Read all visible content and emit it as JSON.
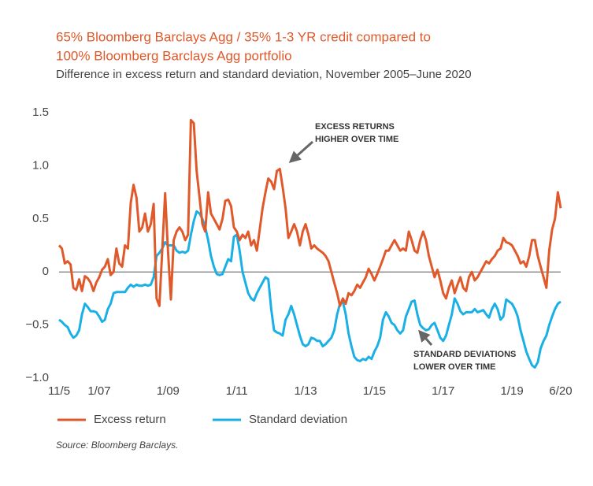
{
  "chart_data": {
    "type": "line",
    "title": [
      "65% Bloomberg Barclays Agg  / 35% 1-3 YR credit compared to",
      "100% Bloomberg Barclays Agg portfolio"
    ],
    "subtitle": "Difference in excess return and standard deviation, November 2005–June 2020",
    "source": "Source: Bloomberg Barclays.",
    "annotations": [
      {
        "text": [
          "EXCESS RETURNS",
          "HIGHER OVER TIME"
        ]
      },
      {
        "text": [
          "STANDARD DEVIATIONS",
          "LOWER OVER TIME"
        ]
      }
    ],
    "categories": [
      "11/5",
      null,
      null,
      null,
      null,
      null,
      null,
      null,
      null,
      null,
      null,
      null,
      null,
      null,
      "1/07",
      null,
      null,
      null,
      null,
      null,
      null,
      null,
      null,
      null,
      null,
      null,
      null,
      null,
      null,
      null,
      null,
      null,
      null,
      null,
      null,
      null,
      null,
      null,
      "1/09",
      null,
      null,
      null,
      null,
      null,
      null,
      null,
      null,
      null,
      null,
      null,
      null,
      null,
      null,
      null,
      null,
      null,
      null,
      null,
      null,
      null,
      null,
      null,
      "1/11",
      null,
      null,
      null,
      null,
      null,
      null,
      null,
      null,
      null,
      null,
      null,
      null,
      null,
      null,
      null,
      null,
      null,
      null,
      null,
      null,
      null,
      null,
      null,
      "1/13",
      null,
      null,
      null,
      null,
      null,
      null,
      null,
      null,
      null,
      null,
      null,
      null,
      null,
      null,
      null,
      null,
      null,
      null,
      null,
      null,
      null,
      null,
      null,
      "1/15",
      null,
      null,
      null,
      null,
      null,
      null,
      null,
      null,
      null,
      null,
      null,
      null,
      null,
      null,
      null,
      null,
      null,
      null,
      null,
      null,
      null,
      null,
      null,
      "1/17",
      null,
      null,
      null,
      null,
      null,
      null,
      null,
      null,
      null,
      null,
      null,
      null,
      null,
      null,
      null,
      null,
      null,
      null,
      null,
      null,
      null,
      null,
      null,
      "1/19",
      null,
      null,
      null,
      null,
      null,
      null,
      null,
      null,
      null,
      null,
      null,
      null,
      null,
      null,
      null,
      null,
      "6/20"
    ],
    "series": [
      {
        "name": "Excess return",
        "color": "#e0592a",
        "values": [
          0.25,
          0.22,
          0.08,
          0.1,
          0.07,
          -0.15,
          -0.17,
          -0.07,
          -0.18,
          -0.04,
          -0.06,
          -0.1,
          -0.18,
          -0.1,
          -0.05,
          0.02,
          0.05,
          0.12,
          -0.03,
          0.0,
          0.22,
          0.08,
          0.05,
          0.25,
          0.22,
          0.65,
          0.82,
          0.7,
          0.38,
          0.42,
          0.55,
          0.38,
          0.45,
          0.64,
          -0.25,
          -0.32,
          0.2,
          0.74,
          0.2,
          -0.26,
          0.3,
          0.38,
          0.42,
          0.38,
          0.3,
          0.35,
          1.43,
          1.4,
          0.95,
          0.7,
          0.45,
          0.38,
          0.75,
          0.55,
          0.5,
          0.45,
          0.4,
          0.5,
          0.67,
          0.68,
          0.62,
          0.42,
          0.38,
          0.3,
          0.35,
          0.32,
          0.38,
          0.25,
          0.3,
          0.2,
          0.4,
          0.6,
          0.75,
          0.88,
          0.85,
          0.78,
          0.95,
          0.97,
          0.8,
          0.6,
          0.32,
          0.38,
          0.45,
          0.38,
          0.25,
          0.38,
          0.45,
          0.35,
          0.22,
          0.25,
          0.22,
          0.2,
          0.18,
          0.15,
          0.1,
          0,
          -0.1,
          -0.2,
          -0.32,
          -0.25,
          -0.3,
          -0.2,
          -0.22,
          -0.18,
          -0.12,
          -0.15,
          -0.1,
          -0.05,
          0.03,
          -0.02,
          -0.08,
          -0.02,
          0.05,
          0.12,
          0.2,
          0.2,
          0.25,
          0.3,
          0.25,
          0.2,
          0.22,
          0.2,
          0.38,
          0.3,
          0.2,
          0.18,
          0.3,
          0.38,
          0.3,
          0.15,
          0.05,
          -0.05,
          0.02,
          -0.08,
          -0.2,
          -0.25,
          -0.15,
          -0.08,
          -0.2,
          -0.12,
          -0.05,
          -0.15,
          -0.18,
          -0.05,
          0,
          -0.08,
          -0.05,
          0,
          0.05,
          0.1,
          0.08,
          0.12,
          0.15,
          0.2,
          0.22,
          0.32,
          0.28,
          0.27,
          0.25,
          0.2,
          0.15,
          0.08,
          0.1,
          0.05,
          0.15,
          0.3,
          0.3,
          0.15,
          0.05,
          -0.05,
          -0.15,
          0.2,
          0.4,
          0.5,
          0.75,
          0.6
        ]
      },
      {
        "name": "Standard deviation",
        "color": "#1ab0e6",
        "values": [
          -0.45,
          -0.47,
          -0.5,
          -0.52,
          -0.58,
          -0.62,
          -0.6,
          -0.55,
          -0.4,
          -0.3,
          -0.33,
          -0.37,
          -0.37,
          -0.38,
          -0.42,
          -0.47,
          -0.45,
          -0.35,
          -0.3,
          -0.2,
          -0.19,
          -0.19,
          -0.19,
          -0.19,
          -0.15,
          -0.12,
          -0.14,
          -0.12,
          -0.13,
          -0.13,
          -0.12,
          -0.13,
          -0.12,
          -0.05,
          0.15,
          0.18,
          0.22,
          0.28,
          0.25,
          0.25,
          0.25,
          0.2,
          0.18,
          0.19,
          0.18,
          0.2,
          0.35,
          0.48,
          0.57,
          0.55,
          0.5,
          0.42,
          0.3,
          0.15,
          0.05,
          -0.02,
          -0.03,
          -0.02,
          0.05,
          0.12,
          0.1,
          0.33,
          0.35,
          0.2,
          0,
          -0.1,
          -0.2,
          -0.25,
          -0.27,
          -0.2,
          -0.15,
          -0.1,
          -0.05,
          -0.07,
          -0.35,
          -0.55,
          -0.57,
          -0.58,
          -0.6,
          -0.45,
          -0.4,
          -0.32,
          -0.4,
          -0.5,
          -0.6,
          -0.68,
          -0.7,
          -0.68,
          -0.62,
          -0.63,
          -0.65,
          -0.65,
          -0.7,
          -0.68,
          -0.65,
          -0.62,
          -0.55,
          -0.4,
          -0.3,
          -0.28,
          -0.4,
          -0.58,
          -0.7,
          -0.8,
          -0.83,
          -0.84,
          -0.82,
          -0.83,
          -0.8,
          -0.82,
          -0.75,
          -0.7,
          -0.62,
          -0.45,
          -0.38,
          -0.42,
          -0.48,
          -0.5,
          -0.55,
          -0.58,
          -0.55,
          -0.42,
          -0.35,
          -0.28,
          -0.27,
          -0.4,
          -0.5,
          -0.53,
          -0.55,
          -0.54,
          -0.5,
          -0.48,
          -0.55,
          -0.62,
          -0.65,
          -0.6,
          -0.5,
          -0.4,
          -0.25,
          -0.3,
          -0.37,
          -0.4,
          -0.38,
          -0.38,
          -0.38,
          -0.35,
          -0.38,
          -0.37,
          -0.36,
          -0.4,
          -0.43,
          -0.35,
          -0.3,
          -0.35,
          -0.45,
          -0.42,
          -0.26,
          -0.28,
          -0.3,
          -0.35,
          -0.42,
          -0.55,
          -0.65,
          -0.75,
          -0.82,
          -0.88,
          -0.9,
          -0.85,
          -0.72,
          -0.65,
          -0.6,
          -0.5,
          -0.42,
          -0.35,
          -0.3,
          -0.28
        ]
      }
    ],
    "ylim": [
      -1.0,
      1.5
    ],
    "yticks": [
      1.5,
      {
        "value": 1.0,
        "label": "1.0"
      },
      0.5,
      0,
      {
        "value": -0.5,
        "label": "−0.5"
      },
      {
        "value": -1.0,
        "label": "−1.0"
      }
    ],
    "grid": false
  }
}
